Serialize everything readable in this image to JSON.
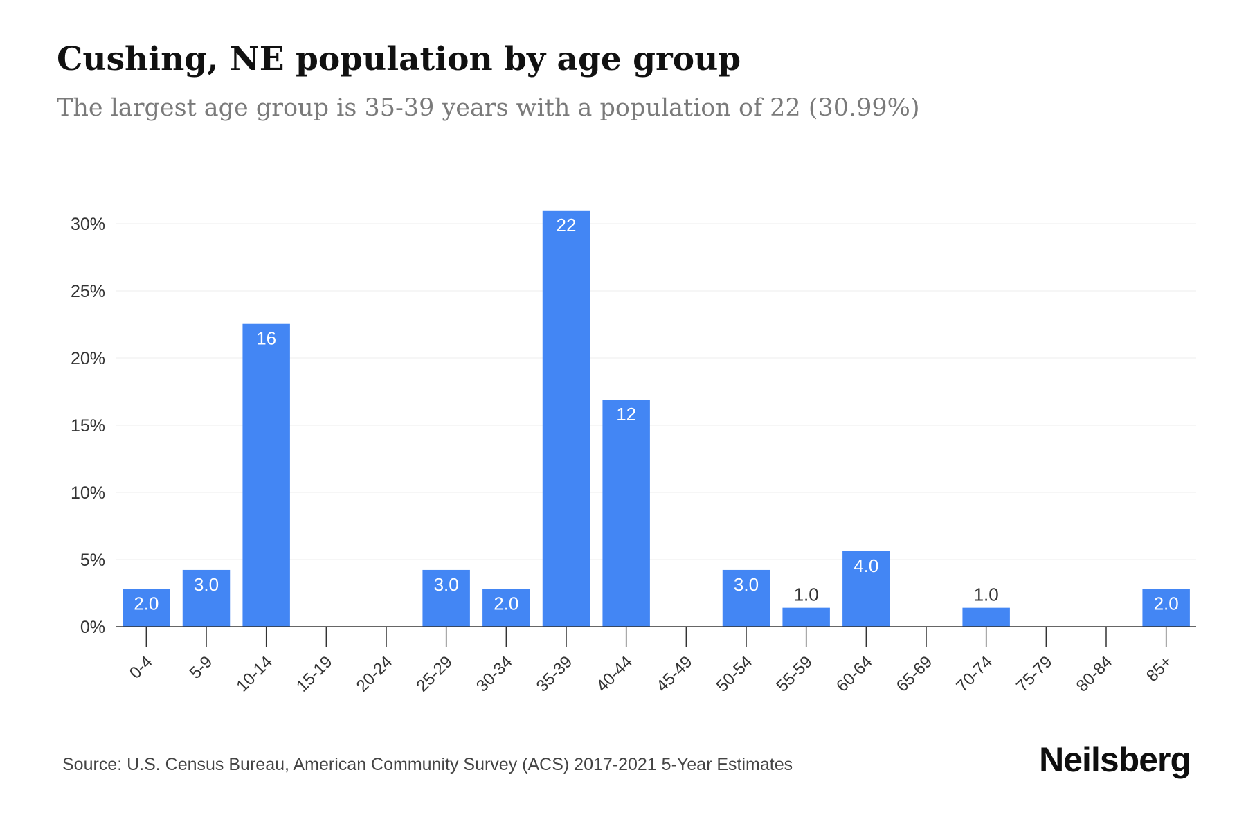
{
  "title": "Cushing, NE population by age group",
  "subtitle": "The largest age group is 35-39 years with a population of 22 (30.99%)",
  "source": "Source: U.S. Census Bureau, American Community Survey (ACS) 2017-2021 5-Year Estimates",
  "brand": "Neilsberg",
  "colors": {
    "bar": "#4386f4",
    "grid": "#ececec",
    "axis": "#333333",
    "tick_text": "#333333",
    "label_inside": "#ffffff",
    "label_outside": "#333333"
  },
  "chart_data": {
    "type": "bar",
    "categories": [
      "0-4",
      "5-9",
      "10-14",
      "15-19",
      "20-24",
      "25-29",
      "30-34",
      "35-39",
      "40-44",
      "45-49",
      "50-54",
      "55-59",
      "60-64",
      "65-69",
      "70-74",
      "75-79",
      "80-84",
      "85+"
    ],
    "values": [
      2.82,
      4.23,
      22.54,
      0,
      0,
      4.23,
      2.82,
      30.99,
      16.9,
      0,
      4.23,
      1.41,
      5.63,
      0,
      1.41,
      0,
      0,
      2.82
    ],
    "data_labels": [
      "2.0",
      "3.0",
      "16",
      "",
      "",
      "3.0",
      "2.0",
      "22",
      "12",
      "",
      "3.0",
      "1.0",
      "4.0",
      "",
      "1.0",
      "",
      "",
      "2.0"
    ],
    "y_ticks": [
      "0%",
      "5%",
      "10%",
      "15%",
      "20%",
      "25%",
      "30%"
    ],
    "y_tick_values": [
      0,
      5,
      10,
      15,
      20,
      25,
      30
    ],
    "ylim": [
      0,
      30.99
    ],
    "xlabel": "",
    "ylabel": "",
    "grid": true,
    "legend": "none"
  }
}
